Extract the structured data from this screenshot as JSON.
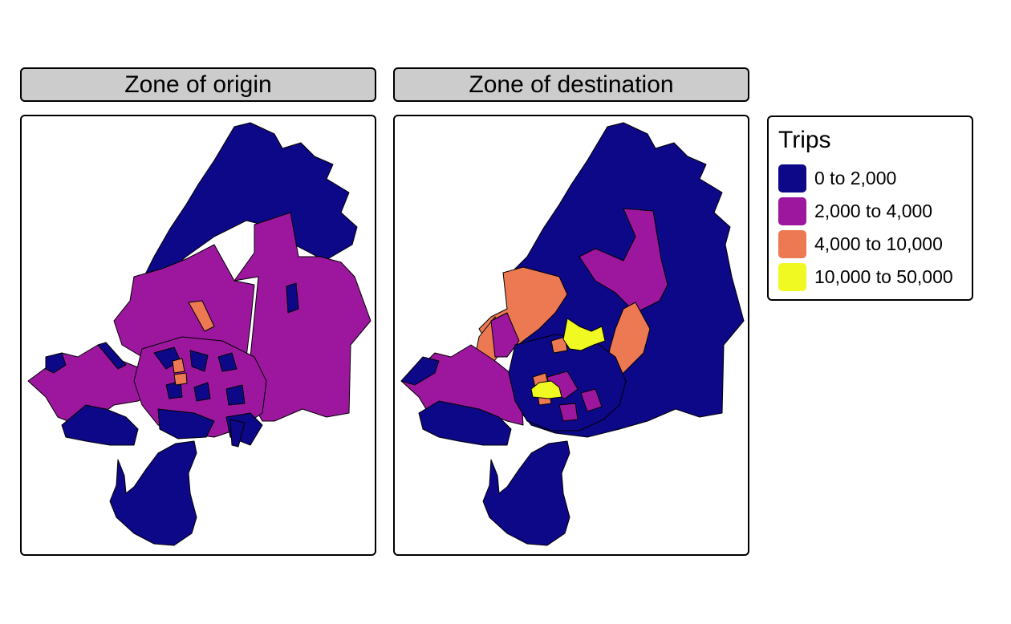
{
  "facets": [
    {
      "title": "Zone of origin"
    },
    {
      "title": "Zone of destination"
    }
  ],
  "legend": {
    "title": "Trips",
    "items": [
      {
        "label": "0 to 2,000",
        "color": "#0d0887"
      },
      {
        "label": "2,000 to 4,000",
        "color": "#9c179e"
      },
      {
        "label": "4,000 to 10,000",
        "color": "#ed7953"
      },
      {
        "label": "10,000 to 50,000",
        "color": "#f0f921"
      }
    ]
  }
}
